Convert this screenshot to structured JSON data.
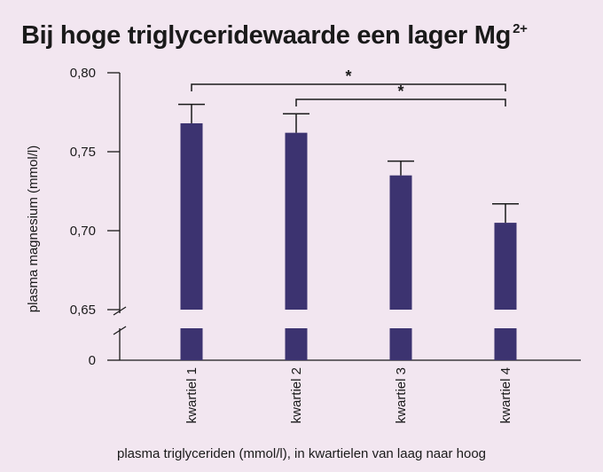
{
  "chart_data": {
    "type": "bar",
    "title": "Bij hoge triglyceridewaarde een lager Mg",
    "title_superscript": "2+",
    "xlabel": "plasma triglyceriden (mmol/l), in kwartielen van laag naar hoog",
    "ylabel": "plasma magnesium (mmol/l)",
    "categories": [
      "kwartiel 1",
      "kwartiel 2",
      "kwartiel 3",
      "kwartiel 4"
    ],
    "values": [
      0.768,
      0.762,
      0.735,
      0.705
    ],
    "error_upper": [
      0.78,
      0.774,
      0.744,
      0.717
    ],
    "yticks": [
      "0,80",
      "0,75",
      "0,70",
      "0,65",
      "0"
    ],
    "ylim": [
      0.65,
      0.8
    ],
    "axis_break": true,
    "bar_color": "#3c3370",
    "significance": [
      {
        "from": 0,
        "to": 3,
        "label": "*"
      },
      {
        "from": 1,
        "to": 3,
        "label": "*"
      }
    ]
  }
}
